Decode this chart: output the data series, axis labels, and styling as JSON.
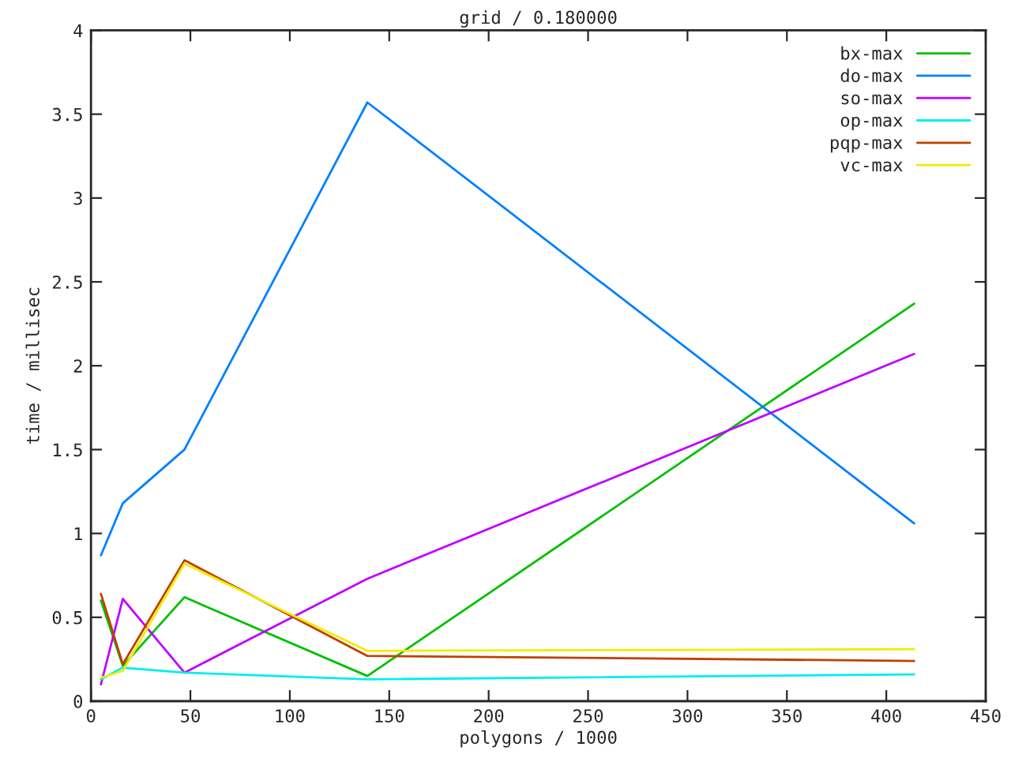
{
  "chart_data": {
    "type": "line",
    "title": "grid / 0.180000",
    "xlabel": "polygons / 1000",
    "ylabel": "time / millisec",
    "x": [
      5,
      16,
      47,
      139,
      414
    ],
    "series": [
      {
        "name": "bx-max",
        "color": "#00c000",
        "values": [
          0.6,
          0.21,
          0.62,
          0.15,
          2.37
        ]
      },
      {
        "name": "do-max",
        "color": "#0080ff",
        "values": [
          0.87,
          1.18,
          1.5,
          3.57,
          1.06
        ]
      },
      {
        "name": "so-max",
        "color": "#c000ff",
        "values": [
          0.1,
          0.61,
          0.17,
          0.73,
          2.07
        ]
      },
      {
        "name": "op-max",
        "color": "#00eeee",
        "values": [
          0.13,
          0.2,
          0.17,
          0.13,
          0.16
        ]
      },
      {
        "name": "pqp-max",
        "color": "#c04000",
        "values": [
          0.64,
          0.22,
          0.84,
          0.27,
          0.24
        ]
      },
      {
        "name": "vc-max",
        "color": "#eeee00",
        "values": [
          0.14,
          0.18,
          0.82,
          0.3,
          0.31
        ]
      }
    ],
    "xlim": [
      0,
      450
    ],
    "xticks": [
      0,
      50,
      100,
      150,
      200,
      250,
      300,
      350,
      400,
      450
    ],
    "ylim": [
      0,
      4
    ],
    "yticks": [
      0,
      0.5,
      1,
      1.5,
      2,
      2.5,
      3,
      3.5,
      4
    ],
    "grid": false,
    "legend": "top right",
    "marker": "none",
    "line_style": "solid"
  }
}
